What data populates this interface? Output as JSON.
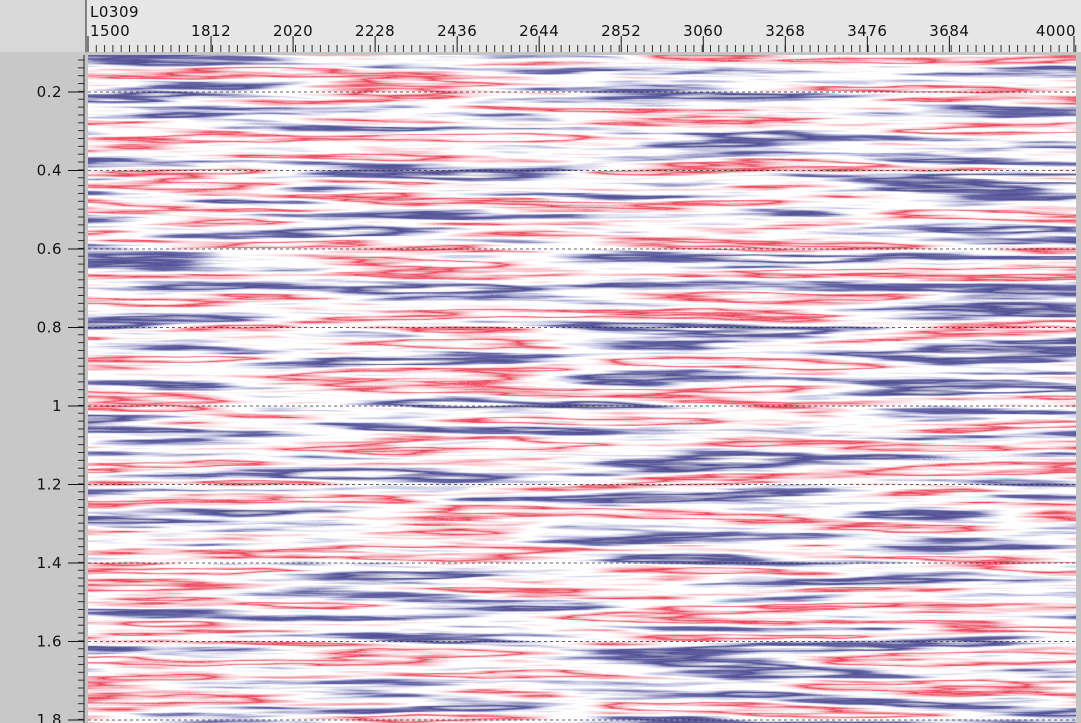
{
  "header": {
    "line": "L0309"
  },
  "x_axis": {
    "ticks": [
      1500,
      1812,
      2020,
      2228,
      2436,
      2644,
      2852,
      3060,
      3268,
      3476,
      3684,
      4000
    ]
  },
  "y_axis": {
    "ticks": [
      0.2,
      0.4,
      0.6,
      0.8,
      1,
      1.2,
      1.4,
      1.6,
      1.8
    ]
  }
}
